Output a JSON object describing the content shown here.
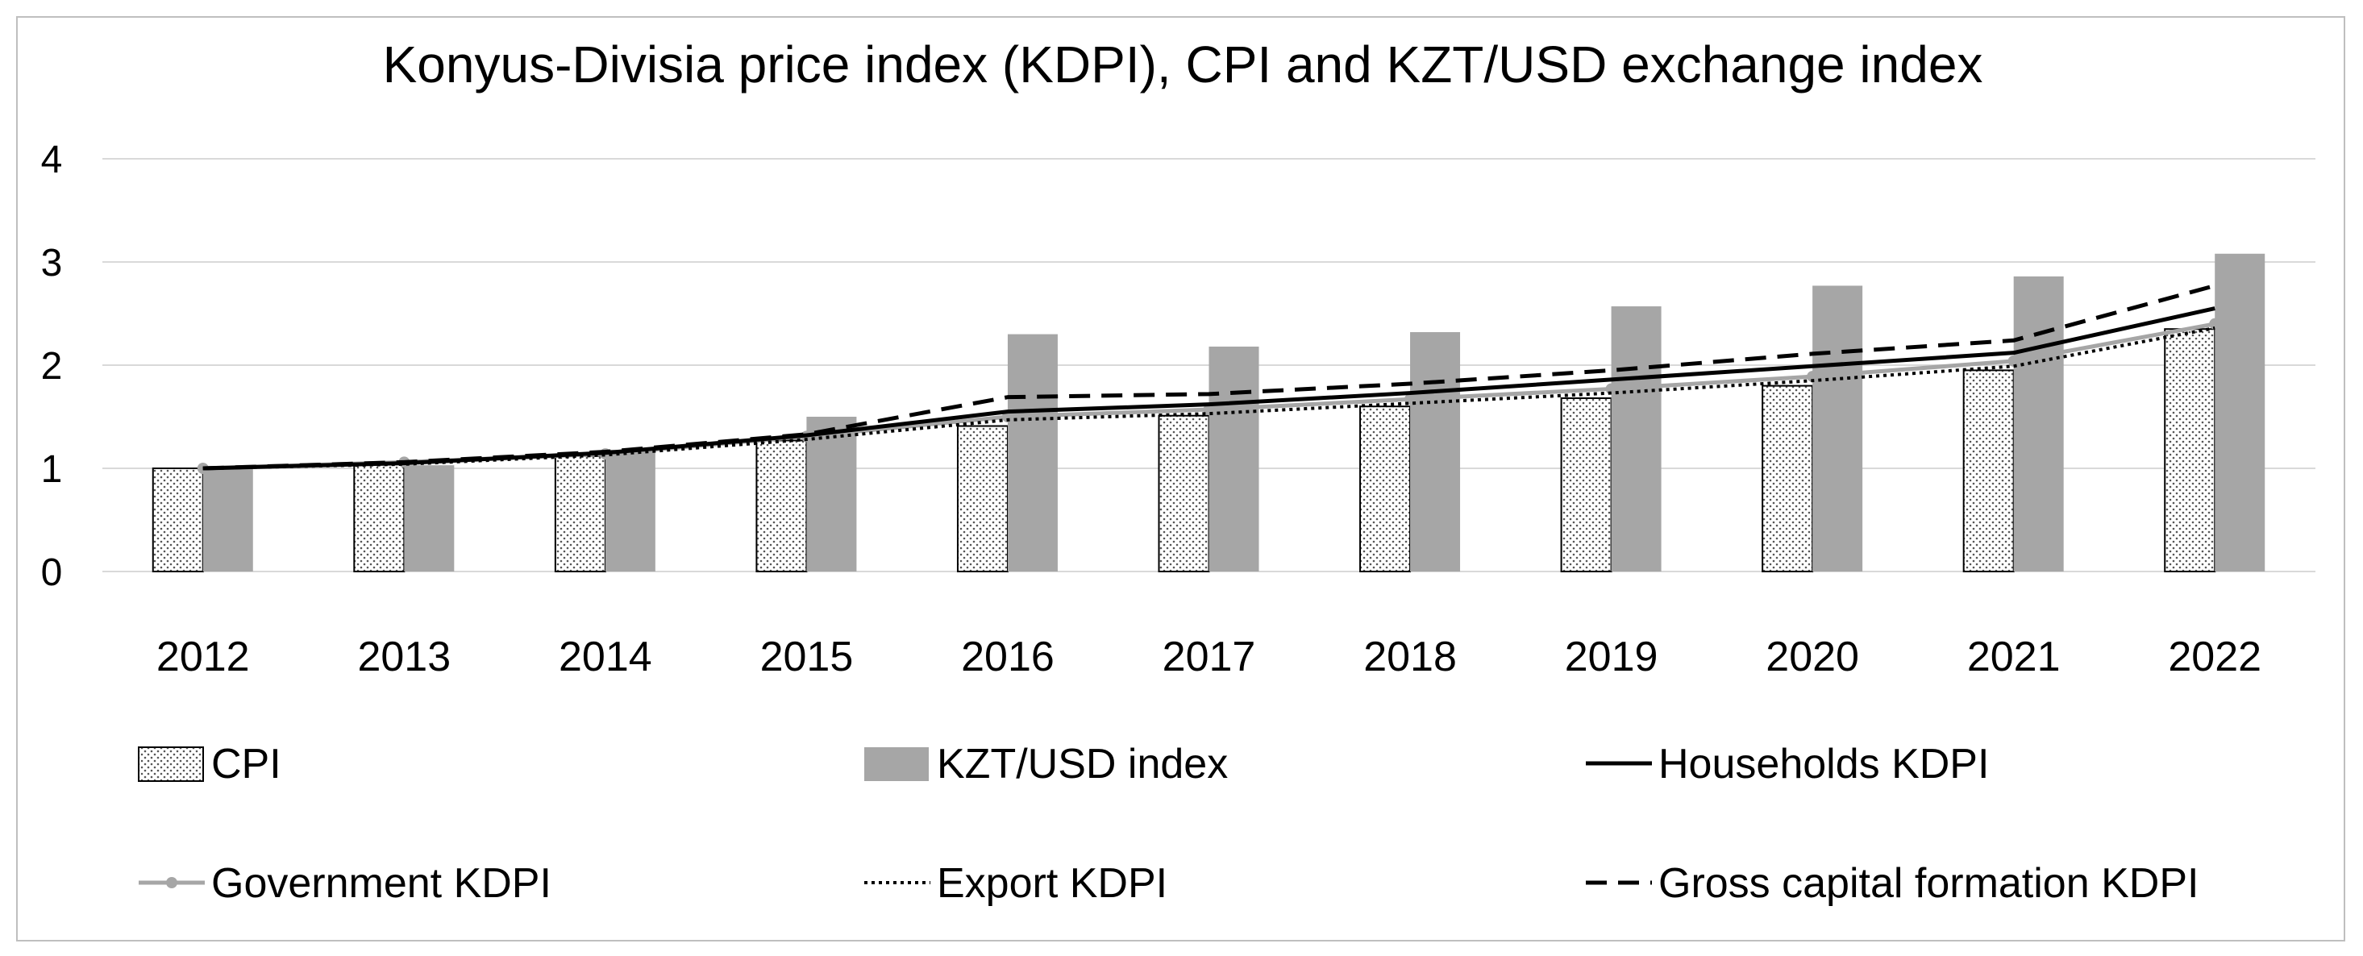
{
  "chart_data": {
    "type": "bar",
    "title": "Konyus-Divisia price index (KDPI), CPI and KZT/USD exchange index",
    "xlabel": "",
    "ylabel": "",
    "ylim": [
      0,
      4
    ],
    "yticks": [
      "0",
      "1",
      "2",
      "3",
      "4"
    ],
    "grid": true,
    "legend_position": "bottom",
    "categories": [
      "2012",
      "2013",
      "2014",
      "2015",
      "2016",
      "2017",
      "2018",
      "2019",
      "2020",
      "2021",
      "2022"
    ],
    "series": [
      {
        "name": "CPI",
        "kind": "bar",
        "pattern": "dotted-hatch",
        "color": "#ffffff",
        "values": [
          1.0,
          1.05,
          1.12,
          1.27,
          1.41,
          1.51,
          1.6,
          1.68,
          1.8,
          1.95,
          2.35
        ]
      },
      {
        "name": "KZT/USD index",
        "kind": "bar",
        "color": "#a6a6a6",
        "values": [
          1.0,
          1.03,
          1.18,
          1.5,
          2.3,
          2.18,
          2.32,
          2.57,
          2.77,
          2.86,
          3.08
        ]
      },
      {
        "name": "Households KDPI",
        "kind": "line",
        "style": "solid",
        "color": "#000000",
        "values": [
          1.0,
          1.05,
          1.15,
          1.32,
          1.55,
          1.62,
          1.73,
          1.86,
          1.99,
          2.12,
          2.55
        ]
      },
      {
        "name": "Government KDPI",
        "kind": "line",
        "style": "solid-markers",
        "color": "#a6a6a6",
        "values": [
          1.0,
          1.06,
          1.14,
          1.31,
          1.5,
          1.57,
          1.67,
          1.77,
          1.89,
          2.04,
          2.4
        ]
      },
      {
        "name": "Export KDPI",
        "kind": "line",
        "style": "dotted",
        "color": "#000000",
        "values": [
          1.0,
          1.04,
          1.13,
          1.28,
          1.47,
          1.53,
          1.63,
          1.73,
          1.85,
          1.99,
          2.36
        ]
      },
      {
        "name": "Gross capital formation KDPI",
        "kind": "line",
        "style": "dashed",
        "color": "#000000",
        "values": [
          1.0,
          1.06,
          1.16,
          1.33,
          1.69,
          1.72,
          1.82,
          1.95,
          2.11,
          2.24,
          2.77
        ]
      }
    ]
  }
}
